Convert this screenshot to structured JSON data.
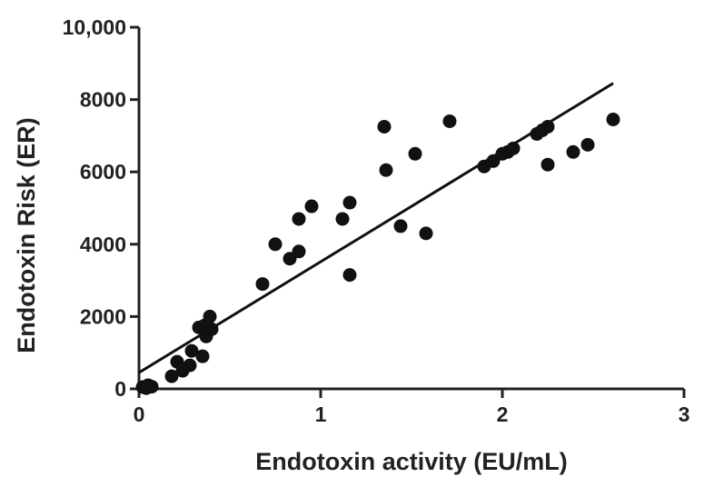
{
  "chart_data": {
    "type": "scatter",
    "title": "",
    "xlabel": "Endotoxin activity (EU/mL)",
    "ylabel": "Endotoxin Risk (ER)",
    "xlim": [
      0,
      3
    ],
    "ylim": [
      0,
      10000
    ],
    "x_ticks": [
      {
        "value": 0,
        "label": "0"
      },
      {
        "value": 1,
        "label": "1"
      },
      {
        "value": 2,
        "label": "2"
      },
      {
        "value": 3,
        "label": "3"
      }
    ],
    "y_ticks": [
      {
        "value": 0,
        "label": "0"
      },
      {
        "value": 2000,
        "label": "2000"
      },
      {
        "value": 4000,
        "label": "4000"
      },
      {
        "value": 6000,
        "label": "6000"
      },
      {
        "value": 8000,
        "label": "8000"
      },
      {
        "value": 10000,
        "label": "10,000"
      }
    ],
    "grid": false,
    "legend": "none",
    "colors": {
      "points": "#111111",
      "axis": "#222222",
      "trendline": "#111111"
    },
    "points": [
      {
        "x": 0.02,
        "y": 50
      },
      {
        "x": 0.04,
        "y": 20
      },
      {
        "x": 0.05,
        "y": 100
      },
      {
        "x": 0.07,
        "y": 60
      },
      {
        "x": 0.18,
        "y": 350
      },
      {
        "x": 0.21,
        "y": 750
      },
      {
        "x": 0.24,
        "y": 500
      },
      {
        "x": 0.28,
        "y": 650
      },
      {
        "x": 0.29,
        "y": 1050
      },
      {
        "x": 0.33,
        "y": 1700
      },
      {
        "x": 0.35,
        "y": 900
      },
      {
        "x": 0.36,
        "y": 1750
      },
      {
        "x": 0.37,
        "y": 1450
      },
      {
        "x": 0.39,
        "y": 2000
      },
      {
        "x": 0.4,
        "y": 1650
      },
      {
        "x": 0.68,
        "y": 2900
      },
      {
        "x": 0.75,
        "y": 4000
      },
      {
        "x": 0.83,
        "y": 3600
      },
      {
        "x": 0.88,
        "y": 3800
      },
      {
        "x": 0.88,
        "y": 4700
      },
      {
        "x": 0.95,
        "y": 5050
      },
      {
        "x": 1.12,
        "y": 4700
      },
      {
        "x": 1.16,
        "y": 5150
      },
      {
        "x": 1.16,
        "y": 3150
      },
      {
        "x": 1.35,
        "y": 7250
      },
      {
        "x": 1.36,
        "y": 6050
      },
      {
        "x": 1.44,
        "y": 4500
      },
      {
        "x": 1.52,
        "y": 6500
      },
      {
        "x": 1.58,
        "y": 4300
      },
      {
        "x": 1.71,
        "y": 7400
      },
      {
        "x": 1.9,
        "y": 6150
      },
      {
        "x": 1.95,
        "y": 6300
      },
      {
        "x": 2.0,
        "y": 6500
      },
      {
        "x": 2.03,
        "y": 6550
      },
      {
        "x": 2.06,
        "y": 6650
      },
      {
        "x": 2.19,
        "y": 7050
      },
      {
        "x": 2.22,
        "y": 7150
      },
      {
        "x": 2.25,
        "y": 7250
      },
      {
        "x": 2.25,
        "y": 6200
      },
      {
        "x": 2.39,
        "y": 6550
      },
      {
        "x": 2.47,
        "y": 6750
      },
      {
        "x": 2.61,
        "y": 7450
      }
    ],
    "trendline": {
      "x1": 0,
      "y1": 450,
      "x2": 2.61,
      "y2": 8450
    }
  }
}
